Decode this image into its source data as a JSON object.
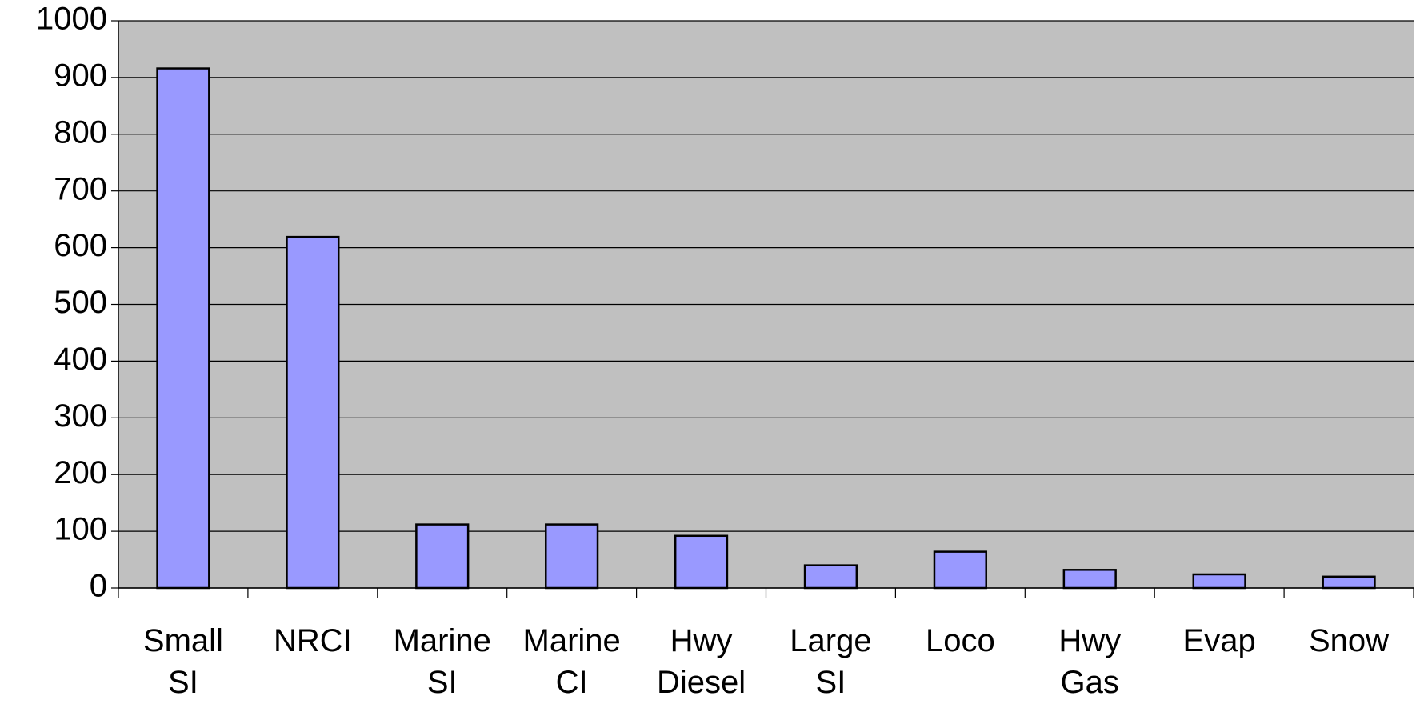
{
  "chart_data": {
    "type": "bar",
    "categories": [
      "Small SI",
      "NRCI",
      "Marine SI",
      "Marine CI",
      "Hwy Diesel",
      "Large SI",
      "Loco",
      "Hwy Gas",
      "Evap",
      "Snow"
    ],
    "values": [
      916,
      619,
      112,
      112,
      92,
      40,
      64,
      32,
      24,
      20
    ],
    "color": "#9999ff",
    "ylim": [
      0,
      1000
    ],
    "yticks": [
      0,
      100,
      200,
      300,
      400,
      500,
      600,
      700,
      800,
      900,
      1000
    ],
    "grid": true
  }
}
